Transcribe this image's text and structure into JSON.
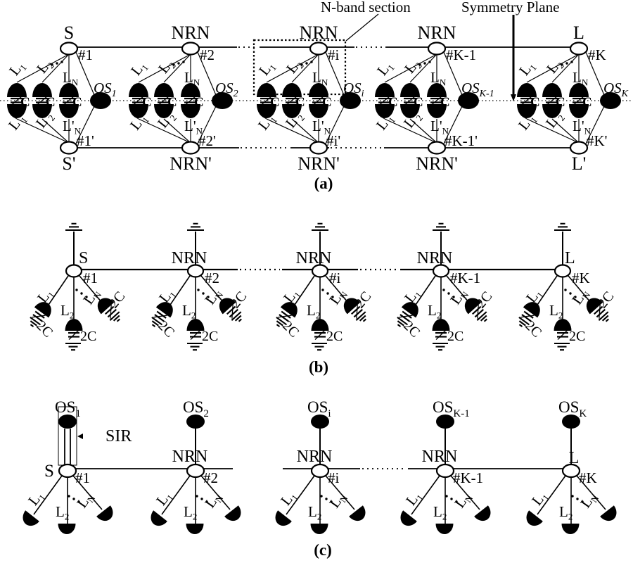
{
  "annotations": {
    "n_band_section": "N-band section",
    "symmetry_plane": "Symmetry Plane",
    "sir": "SIR"
  },
  "captions": {
    "a": "(a)",
    "b": "(b)",
    "c": "(c)"
  },
  "shared": {
    "cap": "C",
    "cap2": "2C",
    "l1": {
      "base": "L",
      "sub": "1"
    },
    "l2": {
      "base": "L",
      "sub": "2"
    },
    "ln": {
      "base": "L",
      "sub": "N"
    },
    "l1p": {
      "base": "L'",
      "sub": "1"
    },
    "l2p": {
      "base": "L'",
      "sub": "2"
    },
    "lnp": {
      "base": "L'",
      "sub": "N"
    }
  },
  "section_a": {
    "units": [
      {
        "top_name": "S",
        "top_num": "#1",
        "bottom_name": "S'",
        "bottom_num": "#1'",
        "os": {
          "base": "OS",
          "sub": "1"
        }
      },
      {
        "top_name": "NRN",
        "top_num": "#2",
        "bottom_name": "NRN'",
        "bottom_num": "#2'",
        "os": {
          "base": "OS",
          "sub": "2"
        }
      },
      {
        "top_name": "NRN",
        "top_num": "#i",
        "bottom_name": "NRN'",
        "bottom_num": "#i'",
        "os": {
          "base": "OS",
          "sub": "i"
        }
      },
      {
        "top_name": "NRN",
        "top_num": "#K-1",
        "bottom_name": "NRN'",
        "bottom_num": "#K-1'",
        "os": {
          "base": "OS",
          "sub": "K-1"
        }
      },
      {
        "top_name": "L",
        "top_num": "#K",
        "bottom_name": "L'",
        "bottom_num": "#K'",
        "os": {
          "base": "OS",
          "sub": "K"
        }
      }
    ]
  },
  "section_b": {
    "units": [
      {
        "name": "S",
        "num": "#1"
      },
      {
        "name": "NRN",
        "num": "#2"
      },
      {
        "name": "NRN",
        "num": "#i"
      },
      {
        "name": "NRN",
        "num": "#K-1"
      },
      {
        "name": "L",
        "num": "#K"
      }
    ]
  },
  "section_c": {
    "units": [
      {
        "name": "S",
        "num": "#1",
        "os": {
          "base": "OS",
          "sub": "1"
        }
      },
      {
        "name": "NRN",
        "num": "#2",
        "os": {
          "base": "OS",
          "sub": "2"
        }
      },
      {
        "name": "NRN",
        "num": "#i",
        "os": {
          "base": "OS",
          "sub": "i"
        }
      },
      {
        "name": "NRN",
        "num": "#K-1",
        "os": {
          "base": "OS",
          "sub": "K-1"
        }
      },
      {
        "name": "L",
        "num": "#K",
        "os": {
          "base": "OS",
          "sub": "K"
        }
      }
    ]
  }
}
